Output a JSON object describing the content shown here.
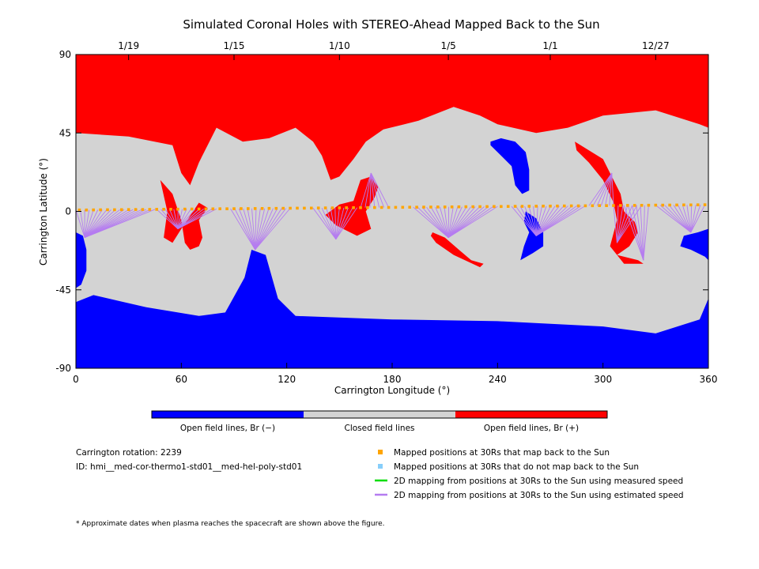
{
  "chart_data": {
    "type": "heatmap",
    "title": "Simulated Coronal Holes with STEREO-Ahead Mapped Back to the Sun",
    "xlabel": "Carrington Longitude (°)",
    "ylabel": "Carrington Latitude (°)",
    "xlim": [
      0,
      360
    ],
    "ylim": [
      -90,
      90
    ],
    "x_ticks": [
      "0",
      "60",
      "120",
      "180",
      "240",
      "300",
      "360"
    ],
    "y_ticks": [
      "90",
      "45",
      "0",
      "-45",
      "-90"
    ],
    "date_ticks": [
      {
        "label": "1/19",
        "lon": 30
      },
      {
        "label": "1/15",
        "lon": 90
      },
      {
        "label": "1/10",
        "lon": 150
      },
      {
        "label": "1/5",
        "lon": 212
      },
      {
        "label": "1/1",
        "lon": 270
      },
      {
        "label": "12/27",
        "lon": 330
      }
    ],
    "colorbar": [
      {
        "label": "Open field lines, Br (−)",
        "color": "#0000ff"
      },
      {
        "label": "Closed field lines",
        "color": "#d3d3d3"
      },
      {
        "label": "Open field lines, Br (+)",
        "color": "#ff0000"
      }
    ],
    "legend": [
      {
        "label": "Mapped positions at 30Rs that map back to the Sun",
        "color": "#ffa500",
        "marker": "square"
      },
      {
        "label": "Mapped positions at 30Rs that do not map back to the Sun",
        "color": "#87cefa",
        "marker": "square"
      },
      {
        "label": "2D mapping from positions at 30Rs to the Sun using measured speed",
        "color": "#00dd00",
        "marker": "line"
      },
      {
        "label": "2D mapping from positions at 30Rs to the Sun using estimated speed",
        "color": "#b57cf0",
        "marker": "line"
      }
    ],
    "info": {
      "rotation": "Carrington rotation: 2239",
      "id": "ID: hmi__med-cor-thermo1-std01__med-hel-poly-std01",
      "footnote": "* Approximate dates when plasma reaches the spacecraft are shown above the figure."
    },
    "regions": {
      "positive_polar_boundary": [
        [
          0,
          45
        ],
        [
          30,
          43
        ],
        [
          55,
          38
        ],
        [
          60,
          22
        ],
        [
          65,
          15
        ],
        [
          70,
          28
        ],
        [
          80,
          48
        ],
        [
          95,
          40
        ],
        [
          110,
          42
        ],
        [
          125,
          48
        ],
        [
          135,
          40
        ],
        [
          140,
          32
        ],
        [
          145,
          18
        ],
        [
          150,
          20
        ],
        [
          158,
          30
        ],
        [
          165,
          40
        ],
        [
          175,
          47
        ],
        [
          195,
          52
        ],
        [
          215,
          60
        ],
        [
          230,
          55
        ],
        [
          240,
          50
        ],
        [
          262,
          45
        ],
        [
          280,
          48
        ],
        [
          300,
          55
        ],
        [
          330,
          58
        ],
        [
          355,
          50
        ],
        [
          360,
          48
        ]
      ],
      "negative_polar_boundary": [
        [
          0,
          -52
        ],
        [
          10,
          -48
        ],
        [
          40,
          -55
        ],
        [
          70,
          -60
        ],
        [
          85,
          -58
        ],
        [
          96,
          -38
        ],
        [
          100,
          -22
        ],
        [
          108,
          -25
        ],
        [
          115,
          -50
        ],
        [
          125,
          -60
        ],
        [
          180,
          -62
        ],
        [
          240,
          -63
        ],
        [
          300,
          -66
        ],
        [
          330,
          -70
        ],
        [
          355,
          -62
        ],
        [
          360,
          -50
        ]
      ],
      "blobs": [
        {
          "sign": "+",
          "points": [
            [
              48,
              18
            ],
            [
              55,
              10
            ],
            [
              60,
              -5
            ],
            [
              62,
              -18
            ],
            [
              65,
              -22
            ],
            [
              70,
              -20
            ],
            [
              72,
              -15
            ],
            [
              70,
              -5
            ],
            [
              75,
              2
            ],
            [
              70,
              5
            ],
            [
              60,
              -10
            ],
            [
              55,
              -18
            ],
            [
              50,
              -15
            ],
            [
              52,
              0
            ]
          ]
        },
        {
          "sign": "+",
          "points": [
            [
              142,
              -2
            ],
            [
              148,
              -8
            ],
            [
              160,
              -14
            ],
            [
              168,
              -10
            ],
            [
              165,
              0
            ],
            [
              170,
              8
            ],
            [
              172,
              14
            ],
            [
              168,
              20
            ],
            [
              162,
              18
            ],
            [
              158,
              6
            ],
            [
              150,
              4
            ]
          ]
        },
        {
          "sign": "+",
          "points": [
            [
              203,
              -12
            ],
            [
              210,
              -15
            ],
            [
              218,
              -22
            ],
            [
              225,
              -28
            ],
            [
              232,
              -30
            ],
            [
              230,
              -32
            ],
            [
              215,
              -25
            ],
            [
              205,
              -18
            ],
            [
              202,
              -14
            ]
          ]
        },
        {
          "sign": "+",
          "points": [
            [
              284,
              40
            ],
            [
              292,
              35
            ],
            [
              300,
              30
            ],
            [
              305,
              20
            ],
            [
              310,
              10
            ],
            [
              312,
              0
            ],
            [
              318,
              -6
            ],
            [
              320,
              -12
            ],
            [
              315,
              -20
            ],
            [
              308,
              -25
            ],
            [
              320,
              -28
            ],
            [
              323,
              -30
            ],
            [
              312,
              -30
            ],
            [
              304,
              -20
            ],
            [
              308,
              -5
            ],
            [
              306,
              5
            ],
            [
              300,
              18
            ],
            [
              292,
              28
            ],
            [
              285,
              35
            ]
          ]
        },
        {
          "sign": "-",
          "points": [
            [
              236,
              40
            ],
            [
              242,
              42
            ],
            [
              250,
              40
            ],
            [
              256,
              34
            ],
            [
              258,
              24
            ],
            [
              258,
              12
            ],
            [
              254,
              10
            ],
            [
              250,
              15
            ],
            [
              248,
              26
            ],
            [
              240,
              34
            ],
            [
              236,
              38
            ]
          ]
        },
        {
          "sign": "-",
          "points": [
            [
              256,
              0
            ],
            [
              262,
              -4
            ],
            [
              266,
              -12
            ],
            [
              266,
              -20
            ],
            [
              260,
              -24
            ],
            [
              253,
              -28
            ],
            [
              255,
              -20
            ],
            [
              258,
              -12
            ],
            [
              255,
              -6
            ]
          ]
        },
        {
          "sign": "-",
          "points": [
            [
              0,
              -12
            ],
            [
              4,
              -14
            ],
            [
              6,
              -22
            ],
            [
              6,
              -34
            ],
            [
              3,
              -42
            ],
            [
              0,
              -44
            ]
          ]
        },
        {
          "sign": "-",
          "points": [
            [
              360,
              -10
            ],
            [
              354,
              -12
            ],
            [
              346,
              -14
            ],
            [
              344,
              -20
            ],
            [
              350,
              -22
            ],
            [
              358,
              -26
            ],
            [
              360,
              -28
            ]
          ]
        }
      ]
    },
    "mapped_line": {
      "lon_start": 2,
      "lat_start": 0.8,
      "lon_end": 358,
      "lat_end": 3.8,
      "n_points": 90
    },
    "mapping_clusters": [
      {
        "footpoint": [
          5,
          -15
        ],
        "lon_range": [
          0,
          45
        ]
      },
      {
        "footpoint": [
          58,
          -10
        ],
        "lon_range": [
          46,
          80
        ]
      },
      {
        "footpoint": [
          102,
          -22
        ],
        "lon_range": [
          88,
          122
        ]
      },
      {
        "footpoint": [
          148,
          -16
        ],
        "lon_range": [
          135,
          160
        ]
      },
      {
        "footpoint": [
          168,
          22
        ],
        "lon_range": [
          162,
          178
        ]
      },
      {
        "footpoint": [
          212,
          -15
        ],
        "lon_range": [
          192,
          240
        ]
      },
      {
        "footpoint": [
          262,
          -14
        ],
        "lon_range": [
          248,
          290
        ]
      },
      {
        "footpoint": [
          305,
          22
        ],
        "lon_range": [
          292,
          306
        ]
      },
      {
        "footpoint": [
          308,
          -18
        ],
        "lon_range": [
          306,
          322
        ]
      },
      {
        "footpoint": [
          323,
          -28
        ],
        "lon_range": [
          312,
          326
        ]
      },
      {
        "footpoint": [
          350,
          -12
        ],
        "lon_range": [
          330,
          358
        ]
      }
    ]
  }
}
